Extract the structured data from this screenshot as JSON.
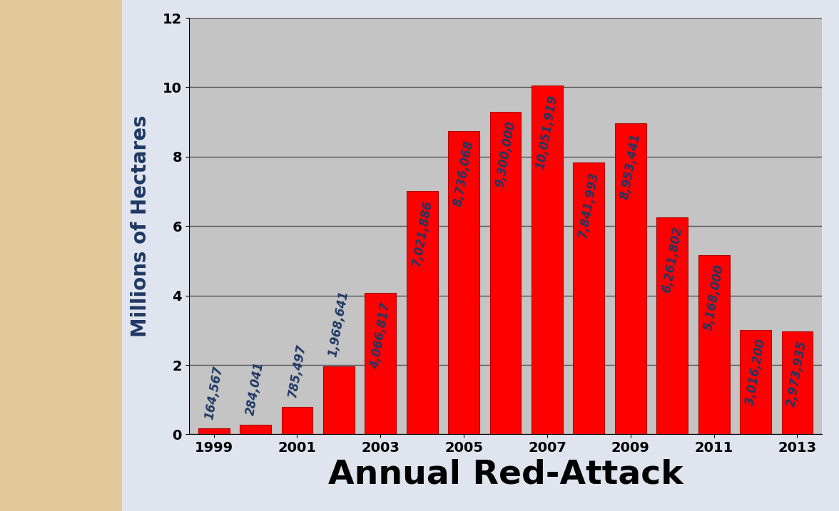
{
  "chart_data": {
    "type": "bar",
    "x_label": "Annual Red-Attack",
    "y_label": "Millions of Hectares",
    "categories": [
      "1999",
      null,
      "2001",
      null,
      "2003",
      null,
      "2005",
      null,
      "2007",
      null,
      "2009",
      null,
      "2011",
      null,
      "2013"
    ],
    "values": [
      0.164567,
      0.284041,
      0.785497,
      1.968641,
      4.066817,
      7.021886,
      8.736068,
      9.3,
      10.051919,
      7.841993,
      8.953441,
      6.261802,
      5.168,
      3.0162,
      2.973935
    ],
    "value_labels": [
      "164,567",
      "284,041",
      "785,497",
      "1,968,641",
      "4,066,817",
      "7,021,886",
      "8,736,068",
      "9,300,000",
      "10,051,919",
      "7,841,993",
      "8,953,441",
      "6,261,802",
      "5,168,000",
      "3,016,200",
      "2,973,935"
    ],
    "color": "#ff0000",
    "ylim": [
      0,
      12
    ],
    "yticks": [
      0,
      2,
      4,
      6,
      8,
      10,
      12
    ],
    "grid": true,
    "data_labels": true
  }
}
